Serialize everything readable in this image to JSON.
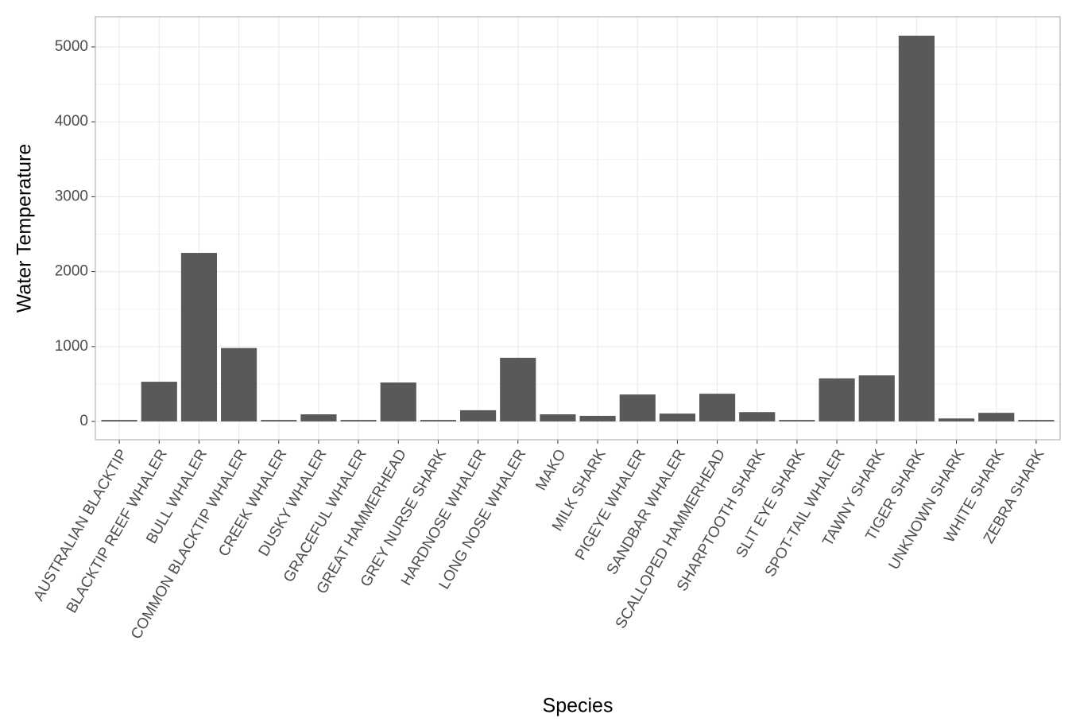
{
  "chart_data": {
    "type": "bar",
    "x_label": "Species",
    "y_label": "Water Temperature",
    "categories": [
      "AUSTRALIAN BLACKTIP",
      "BLACKTIP REEF WHALER",
      "BULL WHALER",
      "COMMON BLACKTIP WHALER",
      "CREEK WHALER",
      "DUSKY WHALER",
      "GRACEFUL WHALER",
      "GREAT HAMMERHEAD",
      "GREY NURSE SHARK",
      "HARDNOSE WHALER",
      "LONG NOSE WHALER",
      "MAKO",
      "MILK SHARK",
      "PIGEYE WHALER",
      "SANDBAR WHALER",
      "SCALLOPED HAMMERHEAD",
      "SHARPTOOTH SHARK",
      "SLIT EYE SHARK",
      "SPOT-TAIL WHALER",
      "TAWNY SHARK",
      "TIGER SHARK",
      "UNKNOWN SHARK",
      "WHITE SHARK",
      "ZEBRA SHARK"
    ],
    "values": [
      20,
      530,
      2250,
      980,
      20,
      95,
      20,
      520,
      20,
      150,
      850,
      95,
      75,
      360,
      105,
      370,
      125,
      20,
      575,
      615,
      5150,
      40,
      115,
      20
    ],
    "color": "#595959",
    "ylim": [
      -244,
      5403
    ],
    "yticks": [
      0,
      1000,
      2000,
      3000,
      4000,
      5000
    ],
    "grid": true
  }
}
